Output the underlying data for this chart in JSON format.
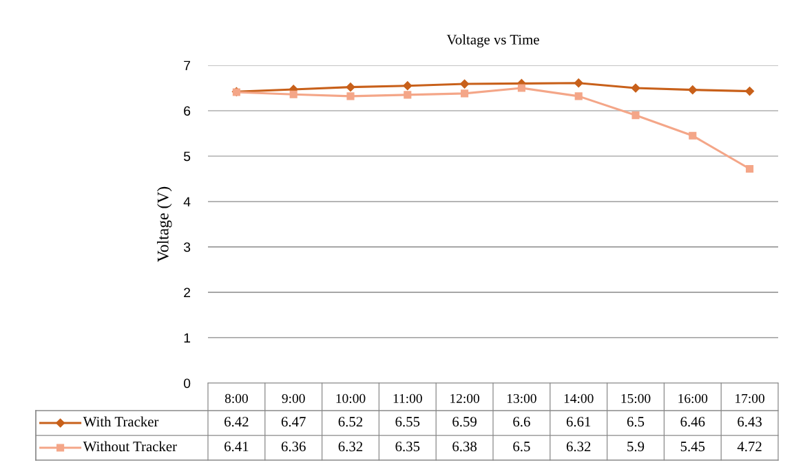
{
  "chart_data": {
    "type": "line",
    "title": "Voltage vs Time",
    "ylabel": "Voltage (V)",
    "categories": [
      "8:00",
      "9:00",
      "10:00",
      "11:00",
      "12:00",
      "13:00",
      "14:00",
      "15:00",
      "16:00",
      "17:00"
    ],
    "series": [
      {
        "name": "With Tracker",
        "color": "#c8601a",
        "marker": "diamond",
        "values": [
          6.42,
          6.47,
          6.52,
          6.55,
          6.59,
          6.6,
          6.61,
          6.5,
          6.46,
          6.43
        ]
      },
      {
        "name": "Without Tracker",
        "color": "#f4a688",
        "marker": "square",
        "values": [
          6.41,
          6.36,
          6.32,
          6.35,
          6.38,
          6.5,
          6.32,
          5.9,
          5.45,
          4.72
        ]
      }
    ],
    "ylim": [
      0,
      7
    ],
    "yticks": [
      0,
      1,
      2,
      3,
      4,
      5,
      6,
      7
    ],
    "grid": "y",
    "legend": "bottom",
    "data_labels": true
  }
}
